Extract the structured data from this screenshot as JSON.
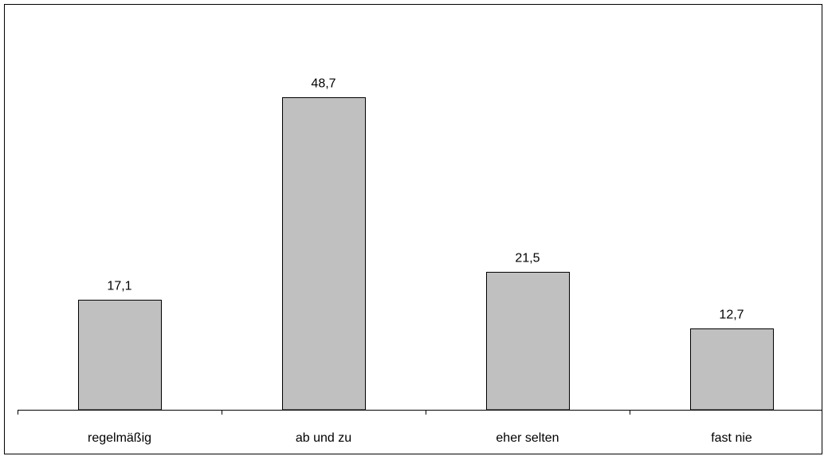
{
  "chart_data": {
    "type": "bar",
    "categories": [
      "regelmäßig",
      "ab und zu",
      "eher selten",
      "fast nie"
    ],
    "values": [
      17.1,
      48.7,
      21.5,
      12.7
    ],
    "data_labels": [
      "17,1",
      "48,7",
      "21,5",
      "12,7"
    ],
    "title": "",
    "xlabel": "",
    "ylabel": "",
    "ylim": [
      0,
      58.9
    ],
    "grid": false,
    "legend": "none",
    "bar_color": "#c0c0c0",
    "bar_edge_color": "#000000"
  }
}
